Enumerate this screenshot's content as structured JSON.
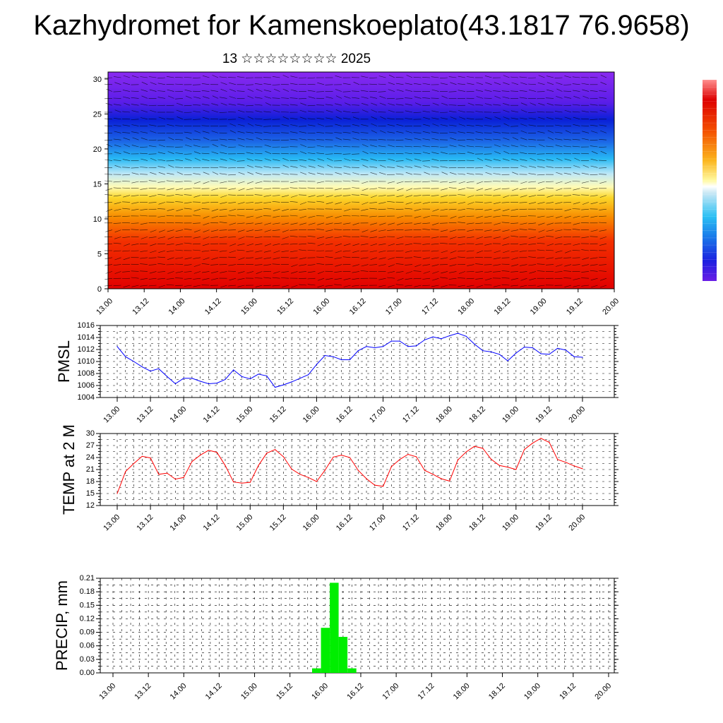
{
  "title": "Kazhydromet for Kamenskoeplato(43.1817 76.9658)",
  "subtitle": "13 ☆☆☆☆☆☆☆☆ 2025",
  "colors": {
    "pmsl_line": "#0000ff",
    "temp_line": "#ff0000",
    "precip_bar": "#00ee00"
  },
  "chart_data": [
    {
      "type": "heatmap",
      "title": "",
      "xlabel": "",
      "ylabel": "",
      "x_ticks": [
        "13.00",
        "13.12",
        "14.00",
        "14.12",
        "15.00",
        "15.12",
        "16.00",
        "16.12",
        "17.00",
        "17.12",
        "18.00",
        "18.12",
        "19.00",
        "19.12",
        "20.00"
      ],
      "y_ticks": [
        0,
        5,
        10,
        15,
        20,
        25,
        30
      ],
      "ylim": [
        0,
        31
      ],
      "overlay": "wind-barbs",
      "colorbar": "vertical rainbow, right side, no labels"
    },
    {
      "type": "line",
      "title": "",
      "ylabel": "PMSL",
      "x_ticks": [
        "13.00",
        "13.12",
        "14.00",
        "14.12",
        "15.00",
        "15.12",
        "16.00",
        "16.12",
        "17.00",
        "17.12",
        "18.00",
        "18.12",
        "19.00",
        "19.12",
        "20.00"
      ],
      "y_ticks": [
        1004,
        1006,
        1008,
        1010,
        1012,
        1014,
        1016
      ],
      "ylim": [
        1004,
        1016
      ],
      "grid": true,
      "series": [
        {
          "values": [
            1012.5,
            1010.8,
            1010.0,
            1009.1,
            1008.4,
            1008.8,
            1007.5,
            1006.3,
            1007.2,
            1007.2,
            1006.7,
            1006.3,
            1006.4,
            1007.0,
            1008.6,
            1007.5,
            1007.1,
            1007.9,
            1007.6,
            1005.7,
            1006.1,
            1006.6,
            1007.2,
            1007.8,
            1009.5,
            1011.0,
            1010.8,
            1010.3,
            1010.3,
            1011.8,
            1012.5,
            1012.3,
            1012.5,
            1013.4,
            1013.4,
            1012.5,
            1012.6,
            1013.6,
            1014.1,
            1013.8,
            1014.3,
            1014.7,
            1014.2,
            1012.9,
            1011.8,
            1011.6,
            1011.2,
            1010.1,
            1011.4,
            1012.4,
            1012.3,
            1011.3,
            1011.2,
            1012.2,
            1011.9,
            1010.8,
            1010.7
          ]
        }
      ]
    },
    {
      "type": "line",
      "title": "",
      "ylabel": "TEMP at 2 M",
      "x_ticks": [
        "13.00",
        "13.12",
        "14.00",
        "14.12",
        "15.00",
        "15.12",
        "16.00",
        "16.12",
        "17.00",
        "17.12",
        "18.00",
        "18.12",
        "19.00",
        "19.12",
        "20.00"
      ],
      "y_ticks": [
        12,
        15,
        18,
        21,
        24,
        27,
        30
      ],
      "ylim": [
        12,
        30
      ],
      "grid": true,
      "series": [
        {
          "values": [
            15.0,
            20.5,
            22.5,
            24.3,
            23.9,
            19.8,
            20.1,
            18.6,
            19.0,
            23.0,
            24.6,
            25.8,
            25.3,
            22.0,
            17.9,
            17.6,
            17.8,
            22.0,
            25.1,
            26.0,
            24.2,
            21.1,
            19.8,
            19.0,
            18.0,
            20.8,
            24.1,
            24.6,
            24.0,
            20.8,
            18.7,
            17.1,
            16.8,
            21.7,
            23.5,
            24.8,
            24.2,
            20.8,
            19.8,
            18.7,
            18.1,
            23.4,
            25.4,
            26.8,
            26.3,
            23.6,
            22.0,
            21.6,
            21.0,
            26.0,
            27.6,
            28.8,
            27.8,
            23.5,
            22.8,
            21.9,
            21.2
          ]
        }
      ]
    },
    {
      "type": "bar",
      "title": "",
      "ylabel": "PRECIP, mm",
      "x_ticks": [
        "13.00",
        "13.12",
        "14.00",
        "14.12",
        "15.00",
        "15.12",
        "16.00",
        "16.12",
        "17.00",
        "17.12",
        "18.00",
        "18.12",
        "19.00",
        "19.12",
        "20.00"
      ],
      "y_ticks": [
        "0.00",
        "0.03",
        "0.06",
        "0.09",
        "0.12",
        "0.15",
        "0.18",
        "0.21"
      ],
      "ylim": [
        0,
        0.21
      ],
      "grid": true,
      "series": [
        {
          "values": [
            0,
            0,
            0,
            0,
            0,
            0,
            0,
            0,
            0,
            0,
            0,
            0,
            0,
            0,
            0,
            0,
            0,
            0,
            0,
            0,
            0,
            0,
            0,
            0.01,
            0.1,
            0.2,
            0.08,
            0.01,
            0,
            0,
            0,
            0,
            0,
            0,
            0,
            0,
            0,
            0,
            0,
            0,
            0,
            0,
            0,
            0,
            0,
            0,
            0,
            0,
            0,
            0,
            0,
            0,
            0,
            0,
            0,
            0,
            0
          ]
        }
      ]
    }
  ]
}
